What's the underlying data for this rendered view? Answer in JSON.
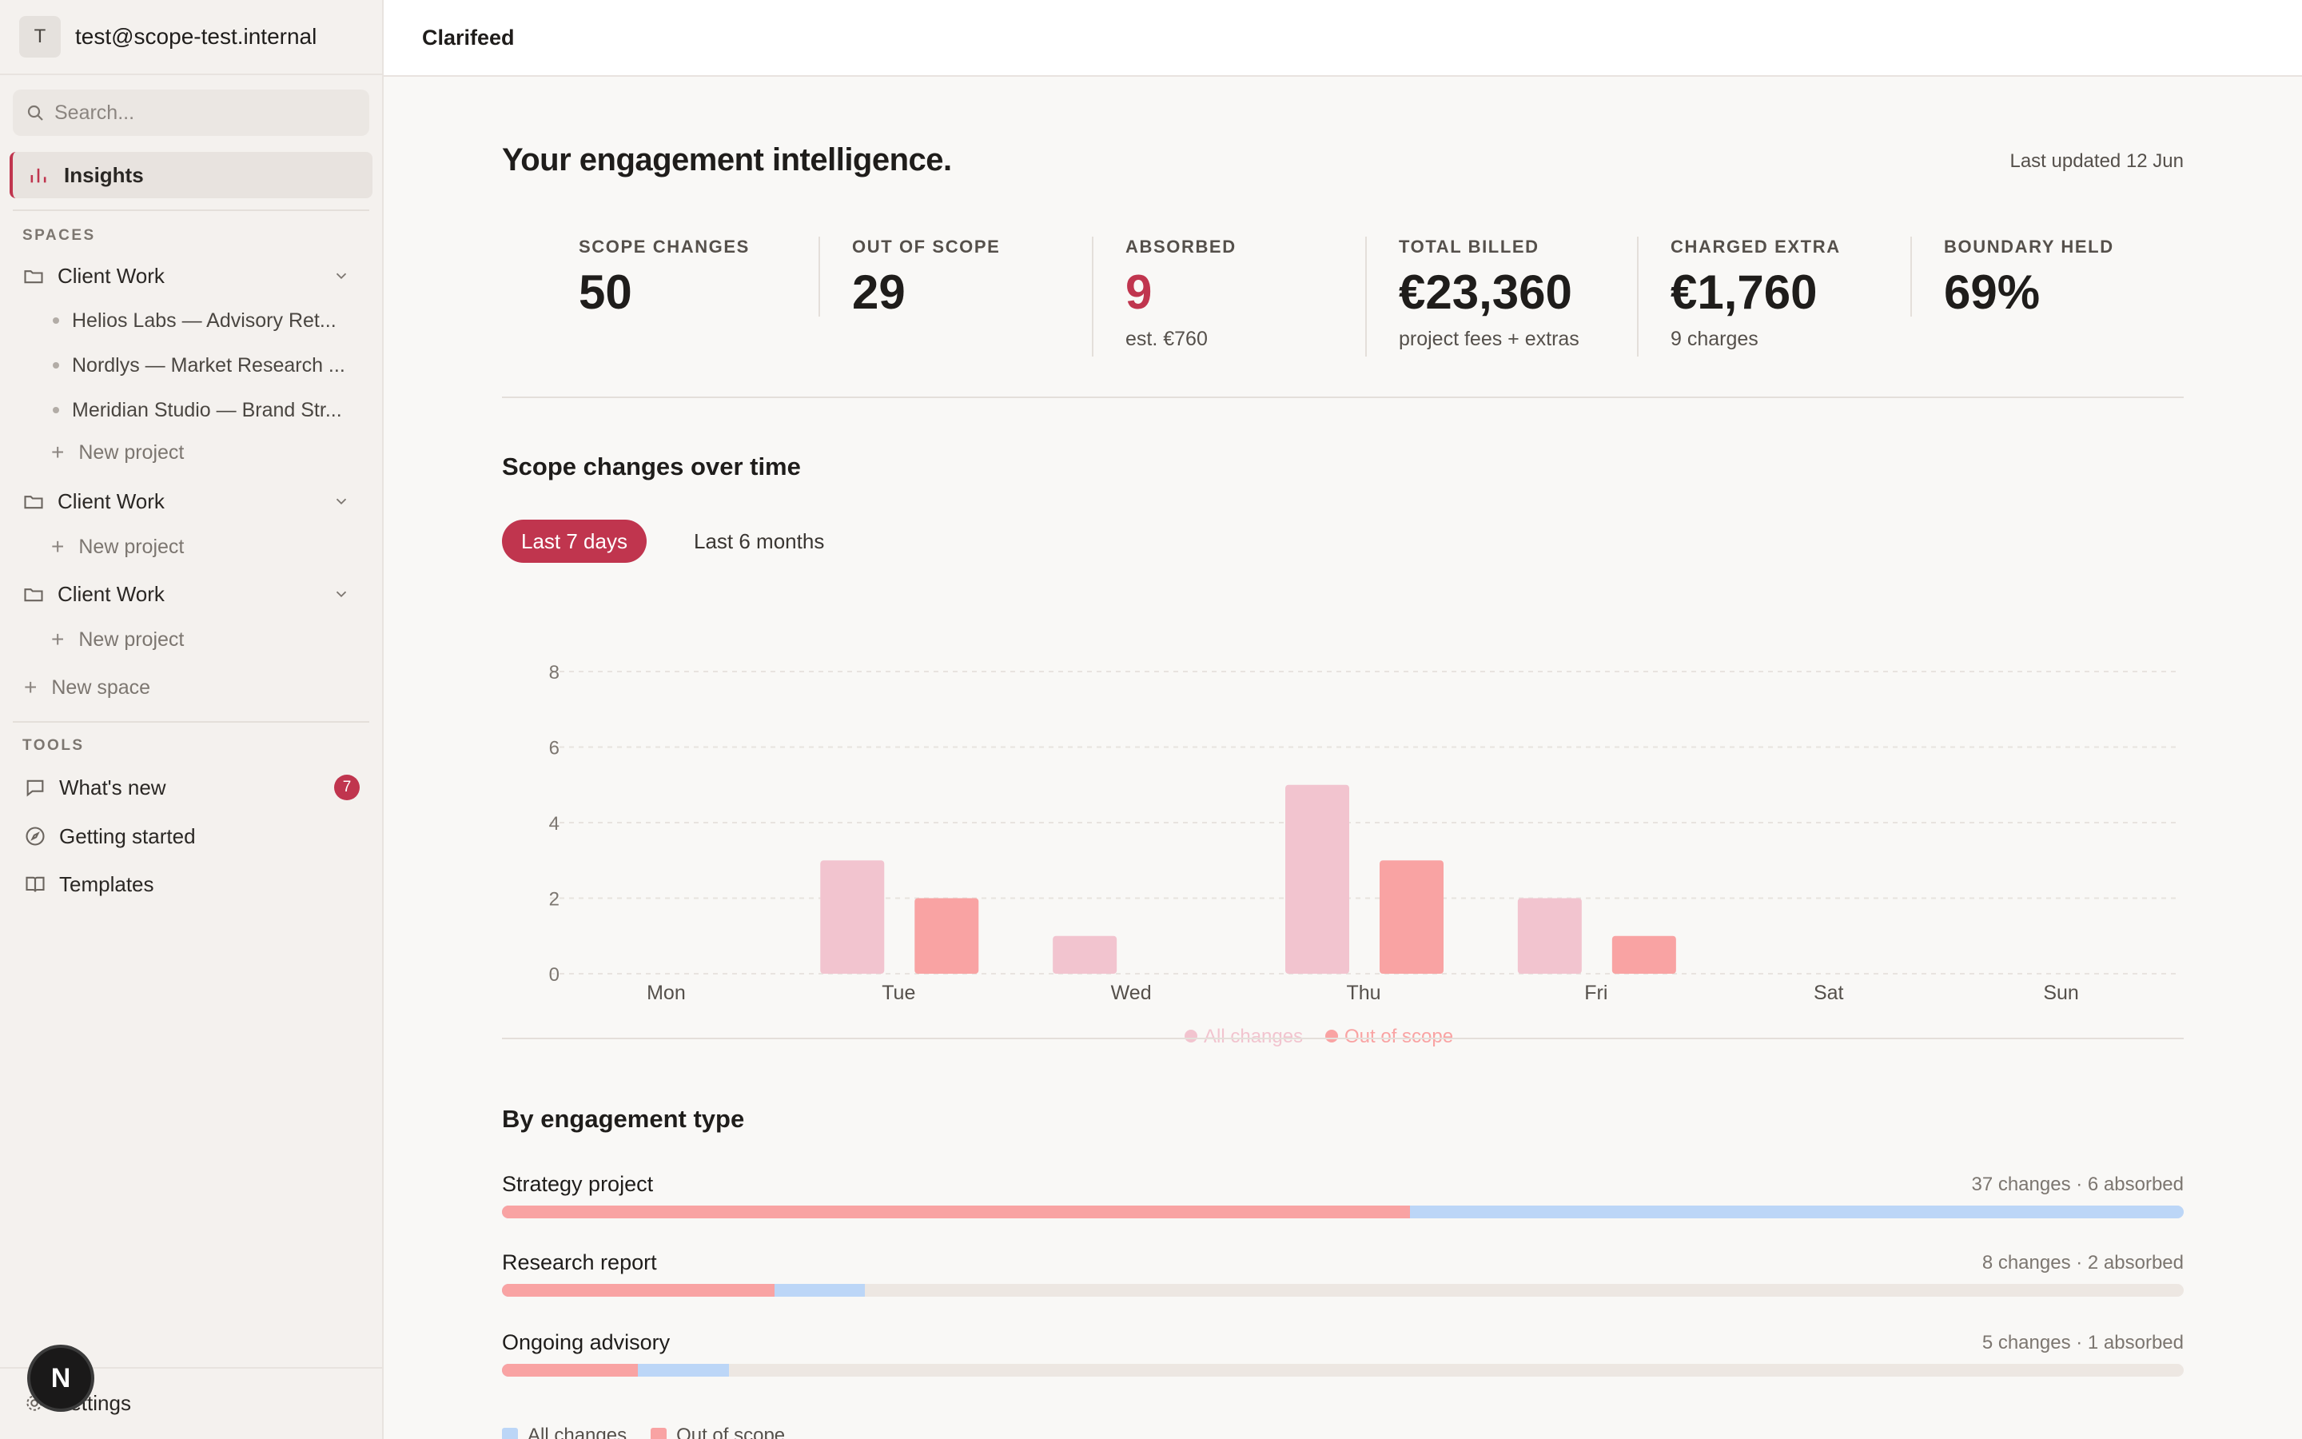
{
  "account": {
    "avatar_letter": "T",
    "email": "test@scope-test.internal"
  },
  "search": {
    "placeholder": "Search..."
  },
  "nav": {
    "insights": "Insights"
  },
  "spaces": {
    "label": "SPACES",
    "groups": [
      {
        "name": "Client Work",
        "projects": [
          "Helios Labs — Advisory Ret...",
          "Nordlys — Market Research ...",
          "Meridian Studio — Brand Str..."
        ],
        "new_project": "New project"
      },
      {
        "name": "Client Work",
        "projects": [],
        "new_project": "New project"
      },
      {
        "name": "Client Work",
        "projects": [],
        "new_project": "New project"
      }
    ],
    "new_space": "New space"
  },
  "tools": {
    "label": "TOOLS",
    "items": [
      {
        "label": "What's new",
        "icon": "message-icon",
        "badge": "7"
      },
      {
        "label": "Getting started",
        "icon": "compass-icon"
      },
      {
        "label": "Templates",
        "icon": "book-icon"
      }
    ]
  },
  "settings_label": "Settings",
  "fab_letter": "N",
  "topbar": {
    "title": "Clarifeed"
  },
  "page": {
    "title": "Your engagement intelligence.",
    "last_updated": "Last updated 12 Jun"
  },
  "stats": [
    {
      "label": "SCOPE CHANGES",
      "value": "50",
      "sub": ""
    },
    {
      "label": "OUT OF SCOPE",
      "value": "29",
      "sub": ""
    },
    {
      "label": "ABSORBED",
      "value": "9",
      "sub": "est. €760",
      "accent": true
    },
    {
      "label": "TOTAL BILLED",
      "value": "€23,360",
      "sub": "project fees + extras"
    },
    {
      "label": "CHARGED EXTRA",
      "value": "€1,760",
      "sub": "9 charges"
    },
    {
      "label": "BOUNDARY HELD",
      "value": "69%",
      "sub": ""
    }
  ],
  "scope_chart": {
    "title": "Scope changes over time",
    "tabs": [
      "Last 7 days",
      "Last 6 months"
    ]
  },
  "chart_data": {
    "type": "bar",
    "categories": [
      "Mon",
      "Tue",
      "Wed",
      "Thu",
      "Fri",
      "Sat",
      "Sun"
    ],
    "series": [
      {
        "name": "All changes",
        "values": [
          0,
          3,
          1,
          5,
          2,
          0,
          0
        ],
        "color": "#f2c4cf"
      },
      {
        "name": "Out of scope",
        "values": [
          0,
          2,
          0,
          3,
          1,
          0,
          0
        ],
        "color": "#f9a3a3"
      }
    ],
    "yticks": [
      0,
      2,
      4,
      6,
      8
    ],
    "ylim": [
      0,
      8
    ],
    "grid": true,
    "legend": "bottom-center"
  },
  "engagement": {
    "title": "By engagement type",
    "rows": [
      {
        "name": "Strategy project",
        "meta": "37 changes · 6 absorbed",
        "out_of_scope_fraction": 0.54,
        "all_changes_fraction": 1.0
      },
      {
        "name": "Research report",
        "meta": "8 changes · 2 absorbed",
        "out_of_scope_fraction": 0.162,
        "all_changes_fraction": 0.216
      },
      {
        "name": "Ongoing advisory",
        "meta": "5 changes · 1 absorbed",
        "out_of_scope_fraction": 0.081,
        "all_changes_fraction": 0.135
      }
    ],
    "legend": [
      "All changes",
      "Out of scope"
    ]
  },
  "colors": {
    "accent": "#c0354e",
    "all_changes_bar": "#f2c4cf",
    "out_of_scope_bar": "#f9a3a3",
    "all_changes_track": "#bcd6f7"
  }
}
